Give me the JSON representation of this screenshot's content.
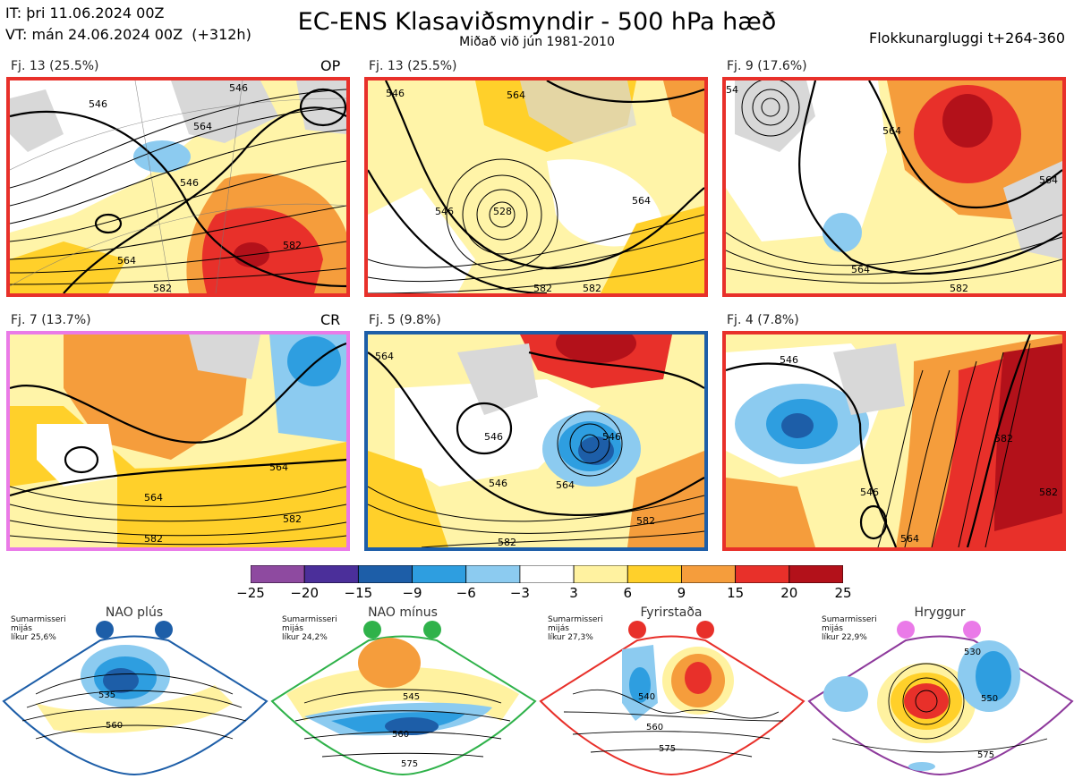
{
  "header": {
    "init_time": "IT: þri 11.06.2024 00Z",
    "valid_time": "VT: mán 24.06.2024 00Z  (+312h)",
    "title": "EC-ENS Klasaviðsmyndir - 500 hPa hæð",
    "subtitle": "Miðað við jún 1981-2010",
    "window": "Flokkunargluggi t+264-360"
  },
  "panels": [
    {
      "label": "Fj. 13 (25.5%)",
      "tag": "OP",
      "border": "#e8302a"
    },
    {
      "label": "Fj. 13 (25.5%)",
      "tag": "",
      "border": "#e8302a"
    },
    {
      "label": "Fj. 9 (17.6%)",
      "tag": "",
      "border": "#e8302a"
    },
    {
      "label": "Fj. 7 (13.7%)",
      "tag": "CR",
      "border": "#ea7ae8"
    },
    {
      "label": "Fj. 5 (9.8%)",
      "tag": "",
      "border": "#1d5ea8"
    },
    {
      "label": "Fj. 4 (7.8%)",
      "tag": "",
      "border": "#e8302a"
    }
  ],
  "colorbar": {
    "ticks": [
      "−25",
      "−20",
      "−15",
      "−9",
      "−6",
      "−3",
      "3",
      "6",
      "9",
      "15",
      "20",
      "25"
    ],
    "colors": [
      "#8e4aa0",
      "#4b2f9a",
      "#1d5ea8",
      "#2e9ee0",
      "#8ccbf0",
      "#ffffff",
      "#fff2a0",
      "#ffd02a",
      "#f59d3c",
      "#e8302a",
      "#b3111a"
    ]
  },
  "climatology": [
    {
      "title": "NAO plús",
      "note": "Sumarmisseri\nmijás\nlíkur 25,6%",
      "color": "#1d5ea8"
    },
    {
      "title": "NAO mínus",
      "note": "Sumarmisseri\nmijás\nlíkur 24,2%",
      "color": "#2fb24a"
    },
    {
      "title": "Fyrirstaða",
      "note": "Sumarmisseri\nmijás\nlíkur 27,3%",
      "color": "#e8302a"
    },
    {
      "title": "Hryggur",
      "note": "Sumarmisseri\nmijás\nlíkur 22,9%",
      "color": "#ea7ae8"
    }
  ],
  "contour_labels": {
    "p1": [
      "546",
      "546",
      "564",
      "546",
      "564",
      "582",
      "582"
    ],
    "p2": [
      "546",
      "546",
      "528",
      "564",
      "564",
      "582",
      "582"
    ],
    "p3": [
      "54",
      "564",
      "564",
      "564",
      "582"
    ],
    "p4": [
      "564",
      "582",
      "564",
      "582"
    ],
    "p5": [
      "564",
      "546",
      "546",
      "546",
      "564",
      "582",
      "582"
    ],
    "p6": [
      "546",
      "546",
      "564",
      "582",
      "582"
    ],
    "c1": [
      "535",
      "560"
    ],
    "c2": [
      "545",
      "560",
      "575"
    ],
    "c3": [
      "540",
      "560",
      "575"
    ],
    "c4": [
      "530",
      "550",
      "575"
    ]
  },
  "chart_data": {
    "type": "heatmap",
    "title": "EC-ENS Klasaviðsmyndir - 500 hPa hæð",
    "subtitle": "Miðað við jún 1981-2010",
    "colorbar_boundaries": [
      -25,
      -20,
      -15,
      -9,
      -6,
      -3,
      3,
      6,
      9,
      15,
      20,
      25
    ],
    "clusters": [
      {
        "label": "Fj. 13 (25.5%)",
        "member": "OP",
        "probability_pct": 25.5
      },
      {
        "label": "Fj. 13 (25.5%)",
        "probability_pct": 25.5
      },
      {
        "label": "Fj. 9 (17.6%)",
        "probability_pct": 17.6
      },
      {
        "label": "Fj. 7 (13.7%)",
        "member": "CR",
        "probability_pct": 13.7
      },
      {
        "label": "Fj. 5 (9.8%)",
        "probability_pct": 9.8
      },
      {
        "label": "Fj. 4 (7.8%)",
        "probability_pct": 7.8
      }
    ],
    "regimes": [
      {
        "name": "NAO plús",
        "probability_pct": 25.6
      },
      {
        "name": "NAO mínus",
        "probability_pct": 24.2
      },
      {
        "name": "Fyrirstaða",
        "probability_pct": 27.3
      },
      {
        "name": "Hryggur",
        "probability_pct": 22.9
      }
    ]
  }
}
